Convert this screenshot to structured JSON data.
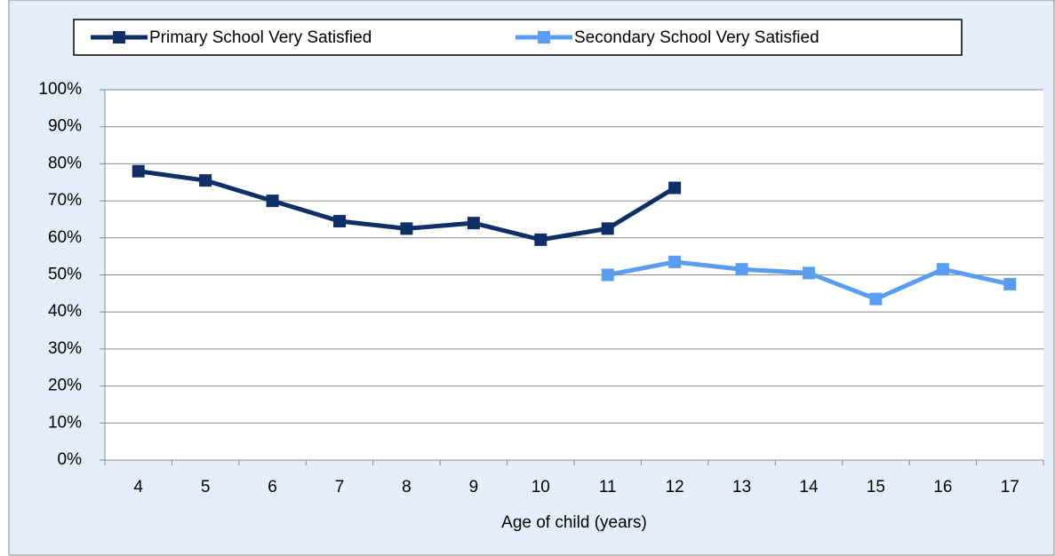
{
  "chart_data": {
    "type": "line",
    "x_label": "Age of child (years)",
    "categories": [
      "4",
      "5",
      "6",
      "7",
      "8",
      "9",
      "10",
      "11",
      "12",
      "13",
      "14",
      "15",
      "16",
      "17"
    ],
    "series": [
      {
        "name": "Primary School Very Satisfied",
        "color": "#0f2f66",
        "values": [
          78,
          75.5,
          70,
          64.5,
          62.5,
          64,
          59.5,
          62.5,
          73.5,
          null,
          null,
          null,
          null,
          null
        ]
      },
      {
        "name": "Secondary School Very Satisfied",
        "color": "#5a9df0",
        "values": [
          null,
          null,
          null,
          null,
          null,
          null,
          null,
          50,
          53.5,
          51.5,
          50.5,
          43.5,
          51.5,
          47.5
        ]
      }
    ],
    "ylim": [
      0,
      100
    ],
    "yticks": [
      {
        "value": 0,
        "label": "0%"
      },
      {
        "value": 10,
        "label": "10%"
      },
      {
        "value": 20,
        "label": "20%"
      },
      {
        "value": 30,
        "label": "30%"
      },
      {
        "value": 40,
        "label": "40%"
      },
      {
        "value": 50,
        "label": "50%"
      },
      {
        "value": 60,
        "label": "60%"
      },
      {
        "value": 70,
        "label": "70%"
      },
      {
        "value": 80,
        "label": "80%"
      },
      {
        "value": 90,
        "label": "90%"
      },
      {
        "value": 100,
        "label": "100%"
      }
    ],
    "grid": true
  }
}
